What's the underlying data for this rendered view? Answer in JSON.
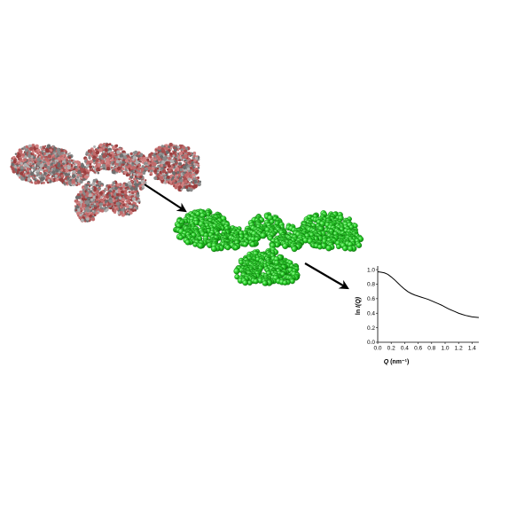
{
  "figure": {
    "atomic_model_icon": "atomic-protein-structure",
    "bead_model_icon": "green-bead-model",
    "arrow_icon": "arrow-icon"
  },
  "colors": {
    "bead": "#2bd12b",
    "bead_dark": "#0a8a0a",
    "atom_red": "#a85050",
    "atom_grey": "#8a8a8a",
    "curve": "#000000"
  },
  "chart_data": {
    "type": "line",
    "xlabel": "Q (nm⁻¹)",
    "xlabel_italic": "Q",
    "xlabel_unit": " (nm⁻¹)",
    "ylabel": "ln I(Q)",
    "ylabel_plain": "ln ",
    "ylabel_italic": "I(Q)",
    "xlim": [
      0.0,
      1.5
    ],
    "ylim": [
      0.0,
      1.05
    ],
    "xticks": [
      "0.0",
      "0.2",
      "0.4",
      "0.6",
      "0.8",
      "1.0",
      "1.2",
      "1.4"
    ],
    "yticks": [
      "0.0",
      "0.2",
      "0.4",
      "0.6",
      "0.8",
      "1.0"
    ],
    "series": [
      {
        "x": [
          0.0,
          0.05,
          0.1,
          0.15,
          0.2,
          0.25,
          0.3,
          0.35,
          0.4,
          0.45,
          0.5,
          0.55,
          0.6,
          0.65,
          0.7,
          0.75,
          0.8,
          0.85,
          0.9,
          0.95,
          1.0,
          1.05,
          1.1,
          1.15,
          1.2,
          1.25,
          1.3,
          1.35,
          1.4,
          1.45,
          1.5
        ],
        "y": [
          0.97,
          0.965,
          0.955,
          0.935,
          0.9,
          0.86,
          0.815,
          0.77,
          0.73,
          0.695,
          0.67,
          0.65,
          0.635,
          0.62,
          0.605,
          0.59,
          0.57,
          0.55,
          0.53,
          0.51,
          0.485,
          0.46,
          0.44,
          0.42,
          0.4,
          0.385,
          0.37,
          0.36,
          0.35,
          0.345,
          0.34
        ]
      }
    ]
  }
}
